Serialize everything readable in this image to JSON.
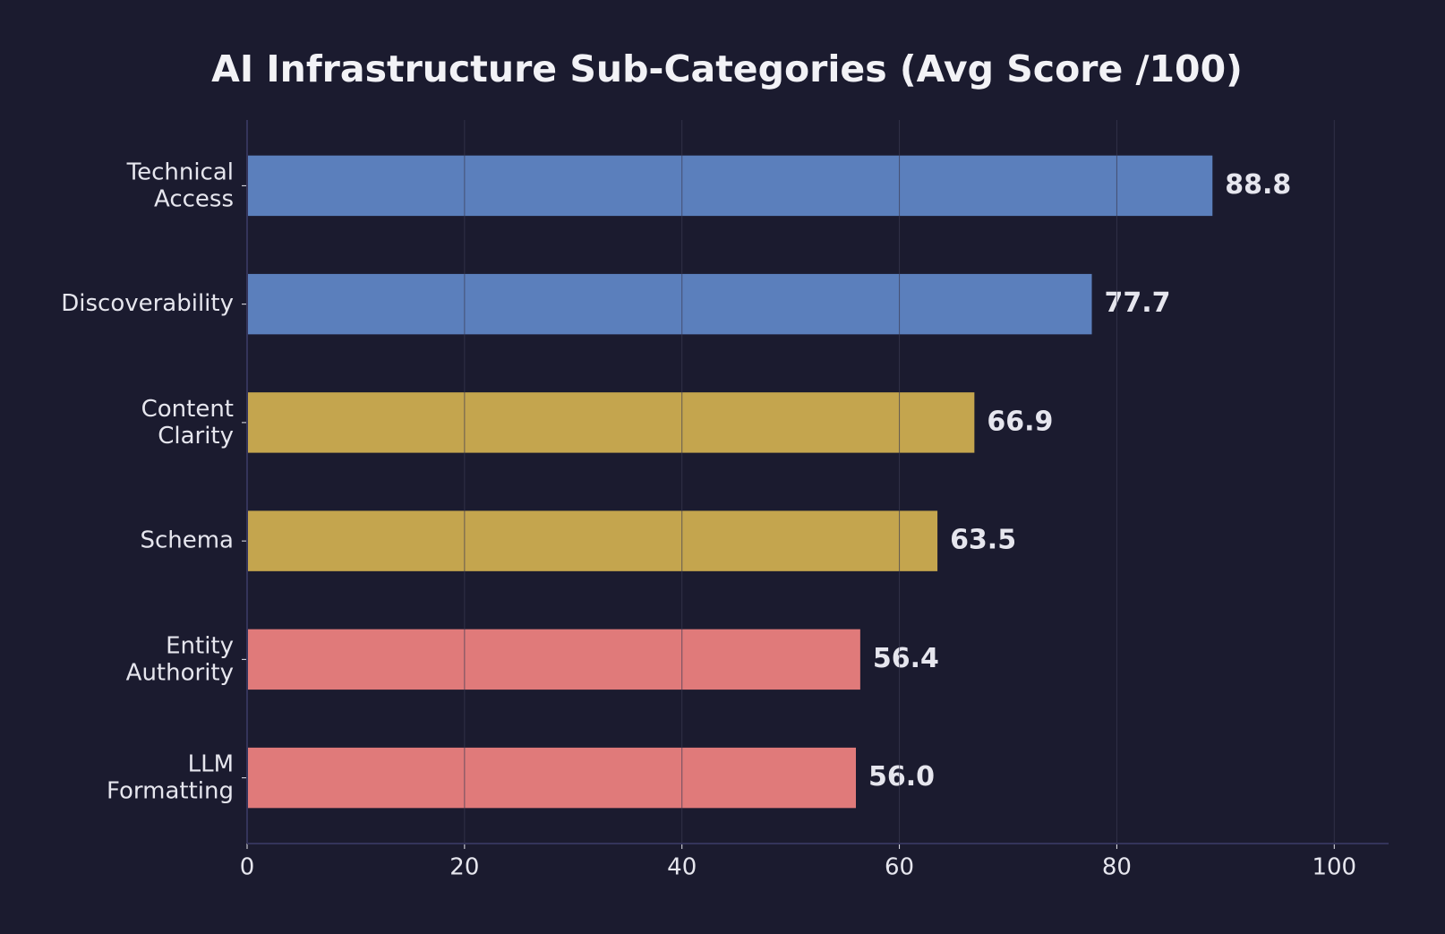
{
  "chart_data": {
    "type": "barh",
    "title": "AI Infrastructure Sub-Categories (Avg Score /100)",
    "categories": [
      "Technical\nAccess",
      "Discoverability",
      "Content\nClarity",
      "Schema",
      "Entity\nAuthority",
      "LLM\nFormatting"
    ],
    "values": [
      88.8,
      77.7,
      66.9,
      63.5,
      56.4,
      56.0
    ],
    "value_labels": [
      "88.8",
      "77.7",
      "66.9",
      "63.5",
      "56.4",
      "56.0"
    ],
    "colors": [
      "#5b7fbc",
      "#5b7fbc",
      "#c4a54e",
      "#c4a54e",
      "#e07a7a",
      "#e07a7a"
    ],
    "xlim": [
      0,
      105
    ],
    "xticks": [
      0,
      20,
      40,
      60,
      80,
      100
    ],
    "grid": true
  }
}
